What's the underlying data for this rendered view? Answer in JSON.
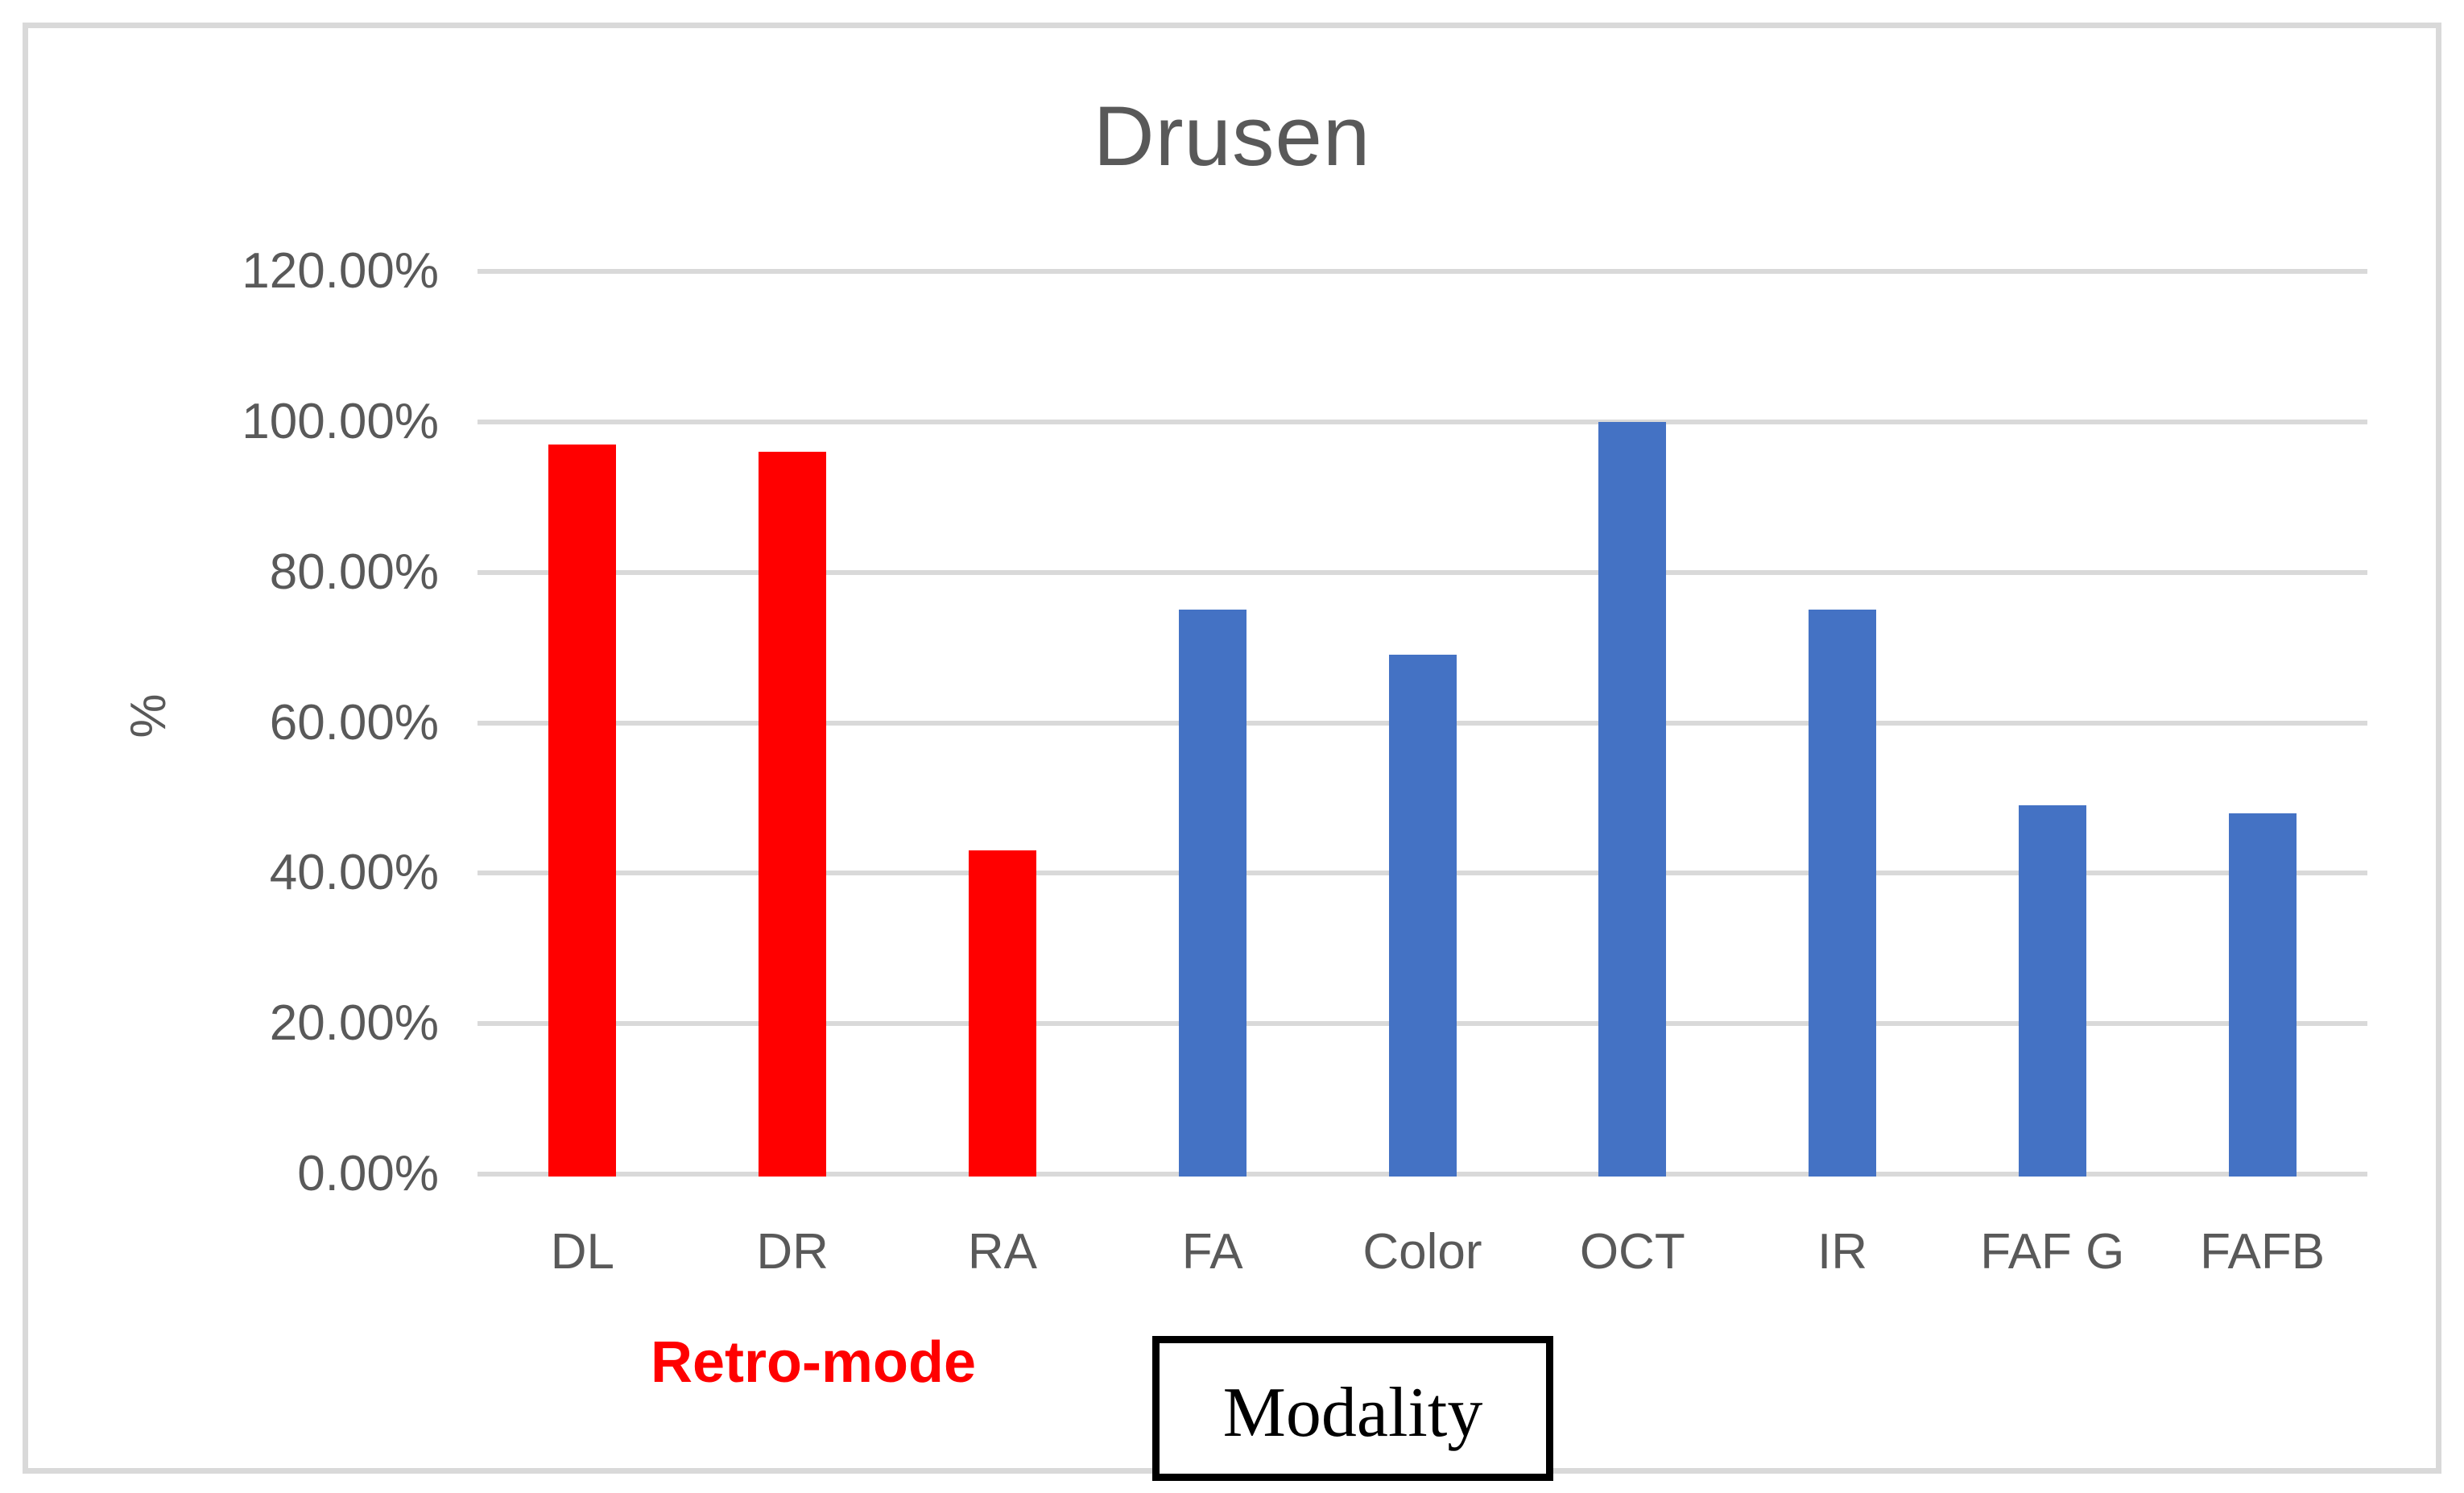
{
  "figure": {
    "title": "Drusen",
    "y_axis_title": "%",
    "annotations": {
      "retro_mode_label": "Retro-mode",
      "modality_label": "Modality"
    },
    "colors": {
      "retro_mode_bars": "#ff0000",
      "modality_bars": "#4472c4",
      "gridline": "#d9d9d9",
      "frame": "#d9d9d9",
      "axis_text": "#595959",
      "title_text": "#595959",
      "retro_mode_annotation": "#ff0000",
      "modality_annotation": "#000000"
    }
  },
  "chart_data": {
    "type": "bar",
    "title": "Drusen",
    "xlabel": "",
    "ylabel": "%",
    "categories": [
      "DL",
      "DR",
      "RA",
      "FA",
      "Color",
      "OCT",
      "IR",
      "FAF G",
      "FAFB"
    ],
    "values": [
      97,
      96,
      43,
      75,
      69,
      100,
      75,
      49,
      48
    ],
    "value_unit": "percent",
    "bar_colors": [
      "#ff0000",
      "#ff0000",
      "#ff0000",
      "#4472c4",
      "#4472c4",
      "#4472c4",
      "#4472c4",
      "#4472c4",
      "#4472c4"
    ],
    "groups": [
      {
        "name": "Retro-mode",
        "categories": [
          "DL",
          "DR",
          "RA"
        ],
        "color": "#ff0000"
      },
      {
        "name": "Modality",
        "categories": [
          "FA",
          "Color",
          "OCT",
          "IR",
          "FAF G",
          "FAFB"
        ],
        "color": "#4472c4"
      }
    ],
    "ylim": [
      0,
      120
    ],
    "ytick_step": 20,
    "ytick_labels": [
      "0.00%",
      "20.00%",
      "40.00%",
      "60.00%",
      "80.00%",
      "100.00%",
      "120.00%"
    ],
    "grid": true,
    "legend": false
  }
}
